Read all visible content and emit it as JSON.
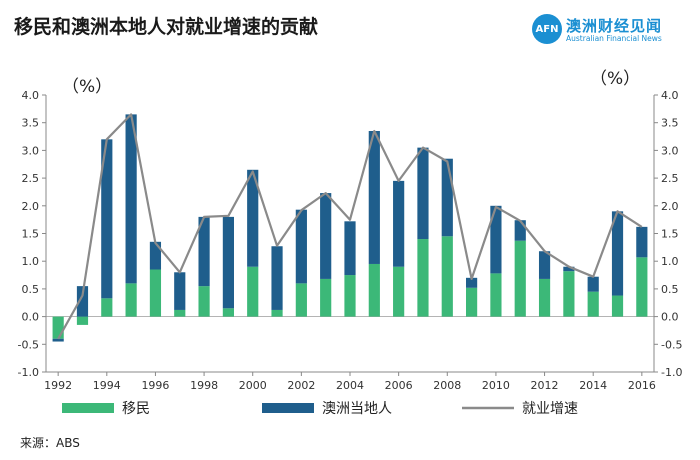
{
  "title": "移民和澳洲本地人对就业增速的贡献",
  "logo": {
    "mark": "AFN",
    "name_cn": "澳洲财经见闻",
    "name_en": "Australian Financial News"
  },
  "source": "来源：ABS",
  "colors": {
    "immigrant": "#3cb878",
    "native": "#1f5e8c",
    "line": "#8a8a8a",
    "axis": "#888888"
  },
  "chart_data": {
    "type": "bar",
    "stacked": true,
    "unit_left": "（%）",
    "unit_right": "（%）",
    "ylim": [
      -1.0,
      4.0
    ],
    "yticks": [
      "4.0",
      "3.5",
      "3.0",
      "2.5",
      "2.0",
      "1.5",
      "1.0",
      "0.5",
      "0.0",
      "-0.5",
      "-1.0"
    ],
    "ytick_values": [
      4.0,
      3.5,
      3.0,
      2.5,
      2.0,
      1.5,
      1.0,
      0.5,
      0.0,
      -0.5,
      -1.0
    ],
    "x": [
      1992,
      1993,
      1994,
      1995,
      1996,
      1997,
      1998,
      1999,
      2000,
      2001,
      2002,
      2003,
      2004,
      2005,
      2006,
      2007,
      2008,
      2009,
      2010,
      2011,
      2012,
      2013,
      2014,
      2015,
      2016
    ],
    "xtick_labels": [
      "1992",
      "1994",
      "1996",
      "1998",
      "2000",
      "2002",
      "2004",
      "2006",
      "2008",
      "2010",
      "2012",
      "2014",
      "2016"
    ],
    "xtick_values": [
      1992,
      1994,
      1996,
      1998,
      2000,
      2002,
      2004,
      2006,
      2008,
      2010,
      2012,
      2014,
      2016
    ],
    "series": [
      {
        "name": "移民",
        "kind": "bar",
        "values": [
          -0.4,
          -0.15,
          0.33,
          0.6,
          0.85,
          0.12,
          0.55,
          0.15,
          0.9,
          0.12,
          0.6,
          0.68,
          0.75,
          0.95,
          0.9,
          1.4,
          1.45,
          0.52,
          0.78,
          1.37,
          0.68,
          0.82,
          0.45,
          0.38,
          1.07
        ]
      },
      {
        "name": "澳洲当地人",
        "kind": "bar",
        "values": [
          -0.05,
          0.55,
          2.87,
          3.05,
          0.5,
          0.68,
          1.25,
          1.65,
          1.75,
          1.15,
          1.33,
          1.55,
          0.97,
          2.4,
          1.55,
          1.65,
          1.4,
          0.18,
          1.22,
          0.37,
          0.5,
          0.08,
          0.27,
          1.52,
          0.55
        ]
      },
      {
        "name": "就业增速",
        "kind": "line",
        "values": [
          -0.4,
          0.38,
          3.2,
          3.65,
          1.33,
          0.8,
          1.8,
          1.82,
          2.62,
          1.28,
          1.92,
          2.23,
          1.75,
          3.35,
          2.45,
          3.05,
          2.8,
          0.68,
          1.98,
          1.73,
          1.18,
          0.9,
          0.72,
          1.9,
          1.62
        ]
      }
    ],
    "legend": {
      "placement": "bottom"
    },
    "grid": false
  }
}
